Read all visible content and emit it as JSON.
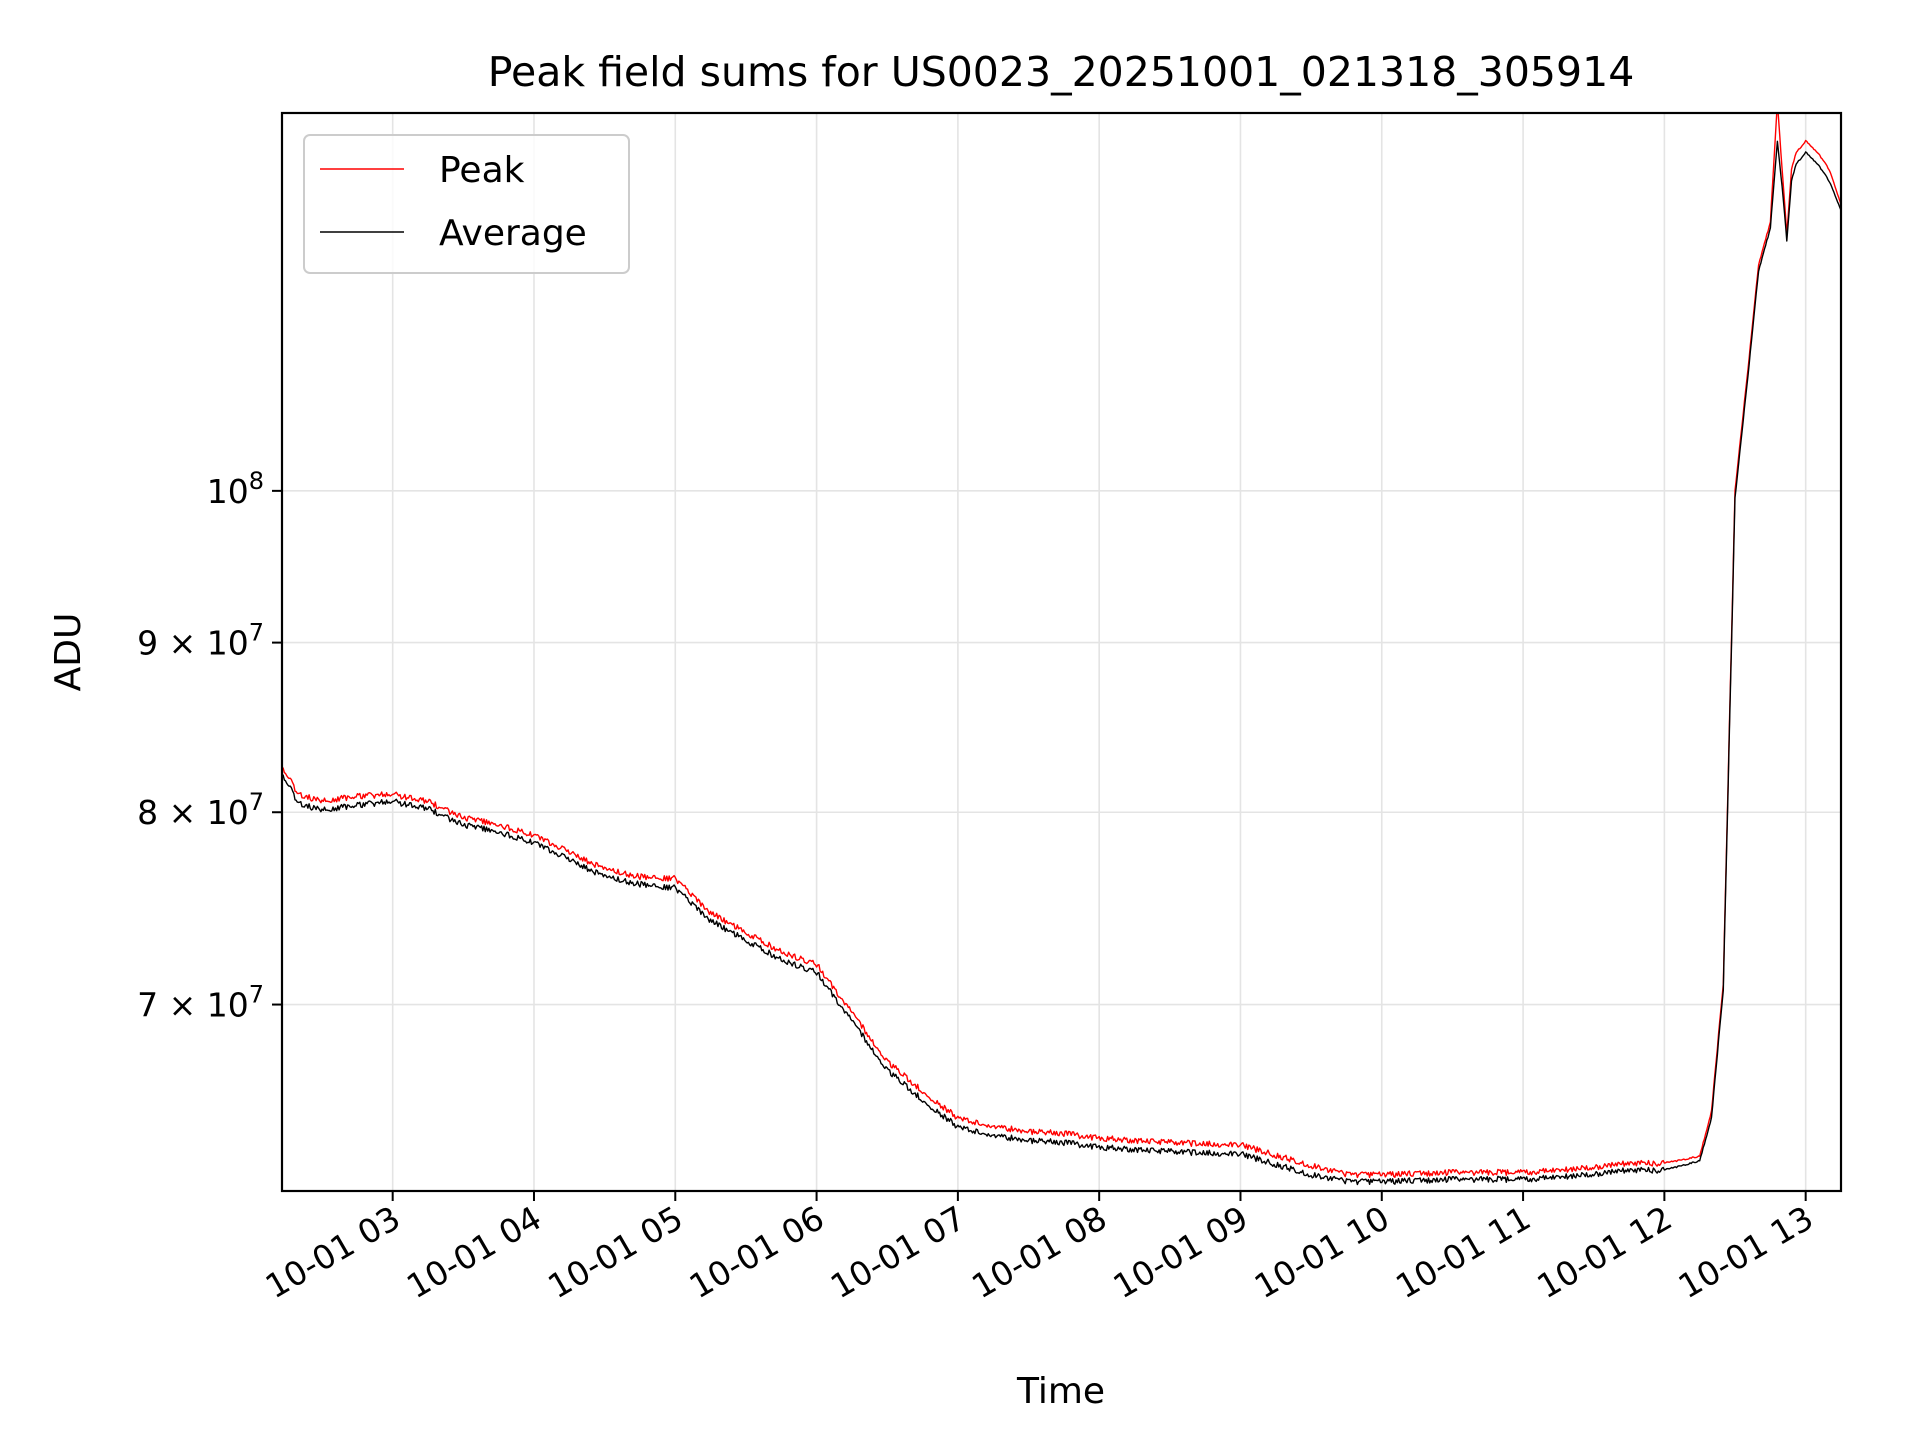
{
  "chart_data": {
    "type": "line",
    "title": "Peak field sums for US0023_20251001_021318_305914",
    "xlabel": "Time",
    "ylabel": "ADU",
    "yscale": "log",
    "xlim": [
      "2025-10-01 02:13",
      "2025-10-01 13:15"
    ],
    "ylim": [
      61500000,
      130000000
    ],
    "grid": true,
    "legend_position": "top-left",
    "x_ticks": [
      "10-01 03",
      "10-01 04",
      "10-01 05",
      "10-01 06",
      "10-01 07",
      "10-01 08",
      "10-01 09",
      "10-01 10",
      "10-01 11",
      "10-01 12",
      "10-01 13"
    ],
    "y_ticks": [
      {
        "value": 70000000,
        "mantissa": "7",
        "exponent": "7",
        "times": "×",
        "base": "10"
      },
      {
        "value": 80000000,
        "mantissa": "8",
        "exponent": "7",
        "times": "×",
        "base": "10"
      },
      {
        "value": 90000000,
        "mantissa": "9",
        "exponent": "7",
        "times": "×",
        "base": "10"
      },
      {
        "value": 100000000,
        "mantissa": "",
        "exponent": "8",
        "times": "",
        "base": "10"
      }
    ],
    "series": [
      {
        "name": "Peak",
        "color": "#ff0000",
        "x": [
          "2025-10-01 02:13",
          "2025-10-01 02:20",
          "2025-10-01 02:30",
          "2025-10-01 02:45",
          "2025-10-01 03:00",
          "2025-10-01 03:15",
          "2025-10-01 03:30",
          "2025-10-01 03:45",
          "2025-10-01 04:00",
          "2025-10-01 04:15",
          "2025-10-01 04:30",
          "2025-10-01 04:45",
          "2025-10-01 05:00",
          "2025-10-01 05:15",
          "2025-10-01 05:30",
          "2025-10-01 05:45",
          "2025-10-01 06:00",
          "2025-10-01 06:15",
          "2025-10-01 06:30",
          "2025-10-01 06:45",
          "2025-10-01 07:00",
          "2025-10-01 07:15",
          "2025-10-01 07:30",
          "2025-10-01 07:45",
          "2025-10-01 08:00",
          "2025-10-01 08:30",
          "2025-10-01 09:00",
          "2025-10-01 09:30",
          "2025-10-01 09:45",
          "2025-10-01 10:00",
          "2025-10-01 10:30",
          "2025-10-01 11:00",
          "2025-10-01 11:30",
          "2025-10-01 11:45",
          "2025-10-01 12:00",
          "2025-10-01 12:15",
          "2025-10-01 12:20",
          "2025-10-01 12:25",
          "2025-10-01 12:30",
          "2025-10-01 12:35",
          "2025-10-01 12:40",
          "2025-10-01 12:45",
          "2025-10-01 12:48",
          "2025-10-01 12:50",
          "2025-10-01 12:52",
          "2025-10-01 12:54",
          "2025-10-01 12:56",
          "2025-10-01 12:58",
          "2025-10-01 13:00",
          "2025-10-01 13:05",
          "2025-10-01 13:10",
          "2025-10-01 13:15"
        ],
        "y": [
          82600000,
          81000000,
          80600000,
          80900000,
          81000000,
          80600000,
          79700000,
          79300000,
          78700000,
          77800000,
          76900000,
          76500000,
          76400000,
          74600000,
          73600000,
          72600000,
          72000000,
          69600000,
          67300000,
          65900000,
          64700000,
          64300000,
          64100000,
          64000000,
          63800000,
          63600000,
          63500000,
          62600000,
          62200000,
          62200000,
          62300000,
          62300000,
          62500000,
          62700000,
          62700000,
          63000000,
          65000000,
          71000000,
          100000000,
          108000000,
          117000000,
          120500000,
          131000000,
          125000000,
          119500000,
          125000000,
          126500000,
          127000000,
          127500000,
          126500000,
          125000000,
          122000000
        ]
      },
      {
        "name": "Average",
        "color": "#000000",
        "x": [
          "2025-10-01 02:13",
          "2025-10-01 02:20",
          "2025-10-01 02:30",
          "2025-10-01 02:45",
          "2025-10-01 03:00",
          "2025-10-01 03:15",
          "2025-10-01 03:30",
          "2025-10-01 03:45",
          "2025-10-01 04:00",
          "2025-10-01 04:15",
          "2025-10-01 04:30",
          "2025-10-01 04:45",
          "2025-10-01 05:00",
          "2025-10-01 05:15",
          "2025-10-01 05:30",
          "2025-10-01 05:45",
          "2025-10-01 06:00",
          "2025-10-01 06:15",
          "2025-10-01 06:30",
          "2025-10-01 06:45",
          "2025-10-01 07:00",
          "2025-10-01 07:15",
          "2025-10-01 07:30",
          "2025-10-01 07:45",
          "2025-10-01 08:00",
          "2025-10-01 08:30",
          "2025-10-01 09:00",
          "2025-10-01 09:30",
          "2025-10-01 09:45",
          "2025-10-01 10:00",
          "2025-10-01 10:30",
          "2025-10-01 11:00",
          "2025-10-01 11:30",
          "2025-10-01 11:45",
          "2025-10-01 12:00",
          "2025-10-01 12:15",
          "2025-10-01 12:20",
          "2025-10-01 12:25",
          "2025-10-01 12:30",
          "2025-10-01 12:35",
          "2025-10-01 12:40",
          "2025-10-01 12:45",
          "2025-10-01 12:48",
          "2025-10-01 12:50",
          "2025-10-01 12:52",
          "2025-10-01 12:54",
          "2025-10-01 12:56",
          "2025-10-01 12:58",
          "2025-10-01 13:00",
          "2025-10-01 13:05",
          "2025-10-01 13:10",
          "2025-10-01 13:15"
        ],
        "y": [
          82200000,
          80500000,
          80100000,
          80400000,
          80600000,
          80200000,
          79300000,
          78900000,
          78300000,
          77400000,
          76500000,
          76100000,
          75900000,
          74200000,
          73200000,
          72200000,
          71600000,
          69200000,
          66900000,
          65500000,
          64300000,
          63900000,
          63700000,
          63600000,
          63400000,
          63200000,
          63100000,
          62200000,
          61900000,
          61900000,
          62000000,
          62000000,
          62200000,
          62400000,
          62400000,
          62800000,
          64700000,
          70700000,
          99500000,
          107500000,
          116500000,
          120000000,
          127500000,
          123500000,
          119000000,
          124000000,
          125500000,
          126000000,
          126500000,
          125500000,
          124000000,
          121500000
        ]
      }
    ]
  }
}
